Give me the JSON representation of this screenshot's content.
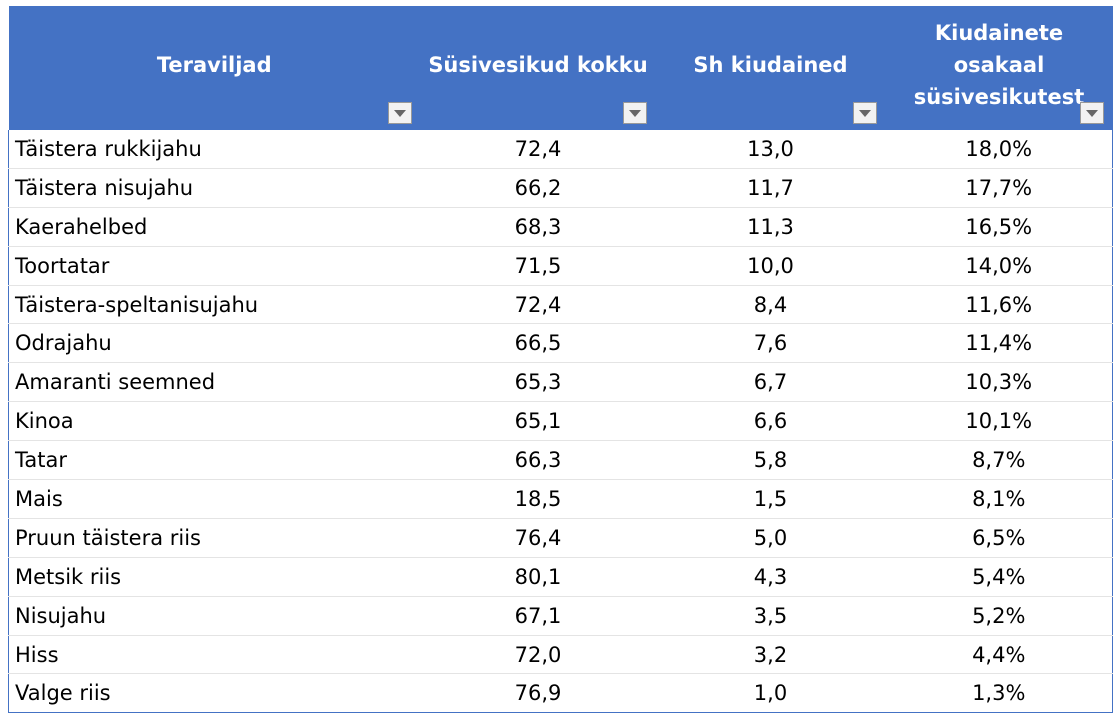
{
  "table": {
    "headers": [
      "Teraviljad",
      "Süsivesikud kokku",
      "Sh kiudained",
      "Kiudainete osakaal süsivesikutest"
    ],
    "rows": [
      [
        "Täistera rukkijahu",
        "72,4",
        "13,0",
        "18,0%"
      ],
      [
        "Täistera nisujahu",
        "66,2",
        "11,7",
        "17,7%"
      ],
      [
        "Kaerahelbed",
        "68,3",
        "11,3",
        "16,5%"
      ],
      [
        "Toortatar",
        "71,5",
        "10,0",
        "14,0%"
      ],
      [
        "Täistera-speltanisujahu",
        "72,4",
        "8,4",
        "11,6%"
      ],
      [
        "Odrajahu",
        "66,5",
        "7,6",
        "11,4%"
      ],
      [
        "Amaranti seemned",
        "65,3",
        "6,7",
        "10,3%"
      ],
      [
        "Kinoa",
        "65,1",
        "6,6",
        "10,1%"
      ],
      [
        "Tatar",
        "66,3",
        "5,8",
        "8,7%"
      ],
      [
        "Mais",
        "18,5",
        "1,5",
        "8,1%"
      ],
      [
        "Pruun täistera riis",
        "76,4",
        "5,0",
        "6,5%"
      ],
      [
        "Metsik riis",
        "80,1",
        "4,3",
        "5,4%"
      ],
      [
        "Nisujahu",
        "67,1",
        "3,5",
        "5,2%"
      ],
      [
        "Hiss",
        "72,0",
        "3,2",
        "4,4%"
      ],
      [
        "Valge riis",
        "76,9",
        "1,0",
        "1,3%"
      ]
    ]
  }
}
